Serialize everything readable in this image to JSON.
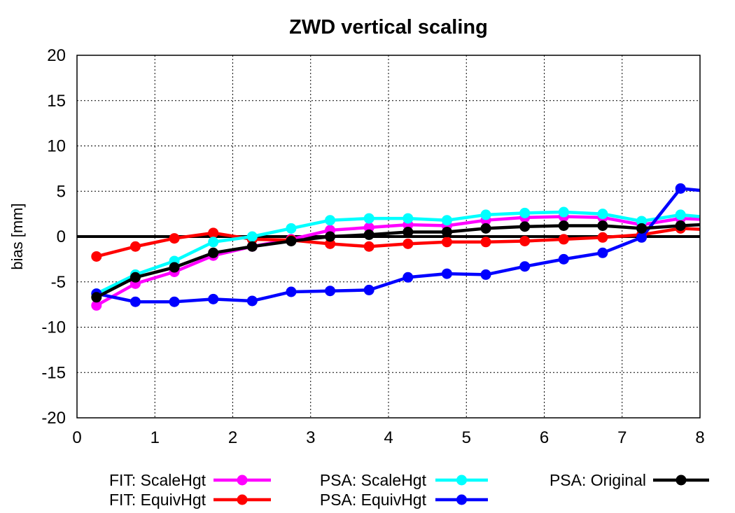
{
  "chart_data": {
    "type": "line",
    "title": "ZWD vertical scaling",
    "xlabel": "",
    "ylabel": "bias [mm]",
    "xlim": [
      0,
      8
    ],
    "ylim": [
      -20,
      20
    ],
    "xticks": [
      0,
      1,
      2,
      3,
      4,
      5,
      6,
      7,
      8
    ],
    "yticks": [
      -20,
      -15,
      -10,
      -5,
      0,
      5,
      10,
      15,
      20
    ],
    "grid": true,
    "zero_line": true,
    "legend_position": "bottom",
    "x": [
      0.25,
      0.75,
      1.25,
      1.75,
      2.25,
      2.75,
      3.25,
      3.75,
      4.25,
      4.75,
      5.25,
      5.75,
      6.25,
      6.75,
      7.25,
      7.75,
      8.0
    ],
    "series": [
      {
        "name": "FIT: ScaleHgt",
        "color": "#ff00ff",
        "values": [
          -7.6,
          -5.2,
          -3.9,
          -2.1,
          -1.1,
          -0.3,
          0.7,
          1.0,
          1.3,
          1.2,
          1.8,
          2.1,
          2.2,
          2.1,
          1.3,
          2.0,
          1.9
        ]
      },
      {
        "name": "FIT: EquivHgt",
        "color": "#ff0000",
        "values": [
          -2.2,
          -1.1,
          -0.2,
          0.4,
          -0.3,
          -0.4,
          -0.8,
          -1.1,
          -0.8,
          -0.6,
          -0.6,
          -0.5,
          -0.3,
          -0.1,
          0.2,
          0.9,
          0.8
        ]
      },
      {
        "name": "PSA: ScaleHgt",
        "color": "#00ffff",
        "values": [
          -6.3,
          -4.2,
          -2.7,
          -0.6,
          0.0,
          0.9,
          1.8,
          2.0,
          2.0,
          1.8,
          2.4,
          2.6,
          2.7,
          2.5,
          1.7,
          2.4,
          2.2
        ]
      },
      {
        "name": "PSA: EquivHgt",
        "color": "#0000ff",
        "values": [
          -6.3,
          -7.2,
          -7.2,
          -6.9,
          -7.1,
          -6.1,
          -6.0,
          -5.9,
          -4.5,
          -4.1,
          -4.2,
          -3.3,
          -2.5,
          -1.8,
          -0.1,
          5.3,
          5.1
        ]
      },
      {
        "name": "PSA: Original",
        "color": "#000000",
        "values": [
          -6.7,
          -4.5,
          -3.4,
          -1.8,
          -1.1,
          -0.5,
          0.0,
          0.2,
          0.5,
          0.5,
          0.9,
          1.1,
          1.2,
          1.2,
          0.9,
          1.2,
          1.3
        ]
      }
    ]
  }
}
